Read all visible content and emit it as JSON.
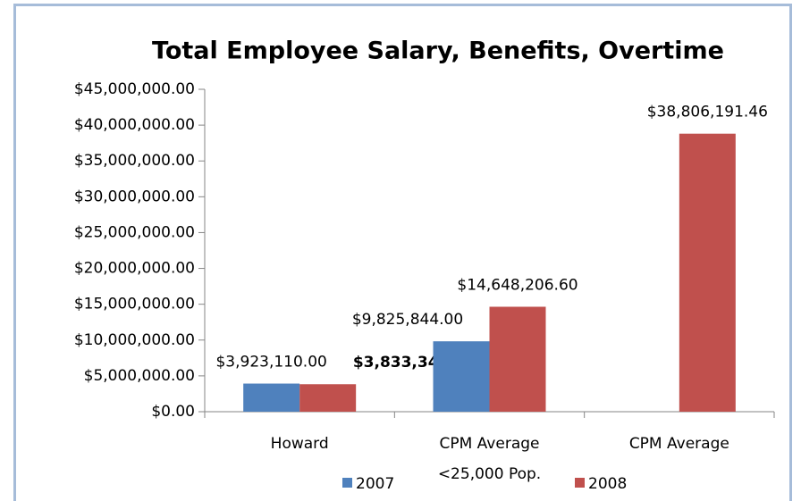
{
  "chart_data": {
    "type": "bar",
    "title": "Total Employee Salary, Benefits, Overtime",
    "categories": [
      "Howard",
      "CPM Average\n<25,000 Pop.",
      "CPM Average"
    ],
    "series": [
      {
        "name": "2007",
        "color": "#4f81bd",
        "values": [
          3923110.0,
          9825844.0,
          null
        ],
        "value_labels": [
          "$3,923,110.00",
          "$9,825,844.00",
          null
        ]
      },
      {
        "name": "2008",
        "color": "#c0504d",
        "values": [
          3833341.0,
          14648206.6,
          38806191.46
        ],
        "value_labels": [
          "$3,833,341.00",
          "$14,648,206.60",
          "$38,806,191.46"
        ]
      }
    ],
    "ylim": [
      0,
      45000000
    ],
    "yticks": [
      {
        "value": 0,
        "label": "$0.00"
      },
      {
        "value": 5000000,
        "label": "$5,000,000.00"
      },
      {
        "value": 10000000,
        "label": "$10,000,000.00"
      },
      {
        "value": 15000000,
        "label": "$15,000,000.00"
      },
      {
        "value": 20000000,
        "label": "$20,000,000.00"
      },
      {
        "value": 25000000,
        "label": "$25,000,000.00"
      },
      {
        "value": 30000000,
        "label": "$30,000,000.00"
      },
      {
        "value": 35000000,
        "label": "$35,000,000.00"
      },
      {
        "value": 40000000,
        "label": "$40,000,000.00"
      },
      {
        "value": 45000000,
        "label": "$45,000,000.00"
      }
    ],
    "grid": false,
    "legend": "bottom"
  }
}
